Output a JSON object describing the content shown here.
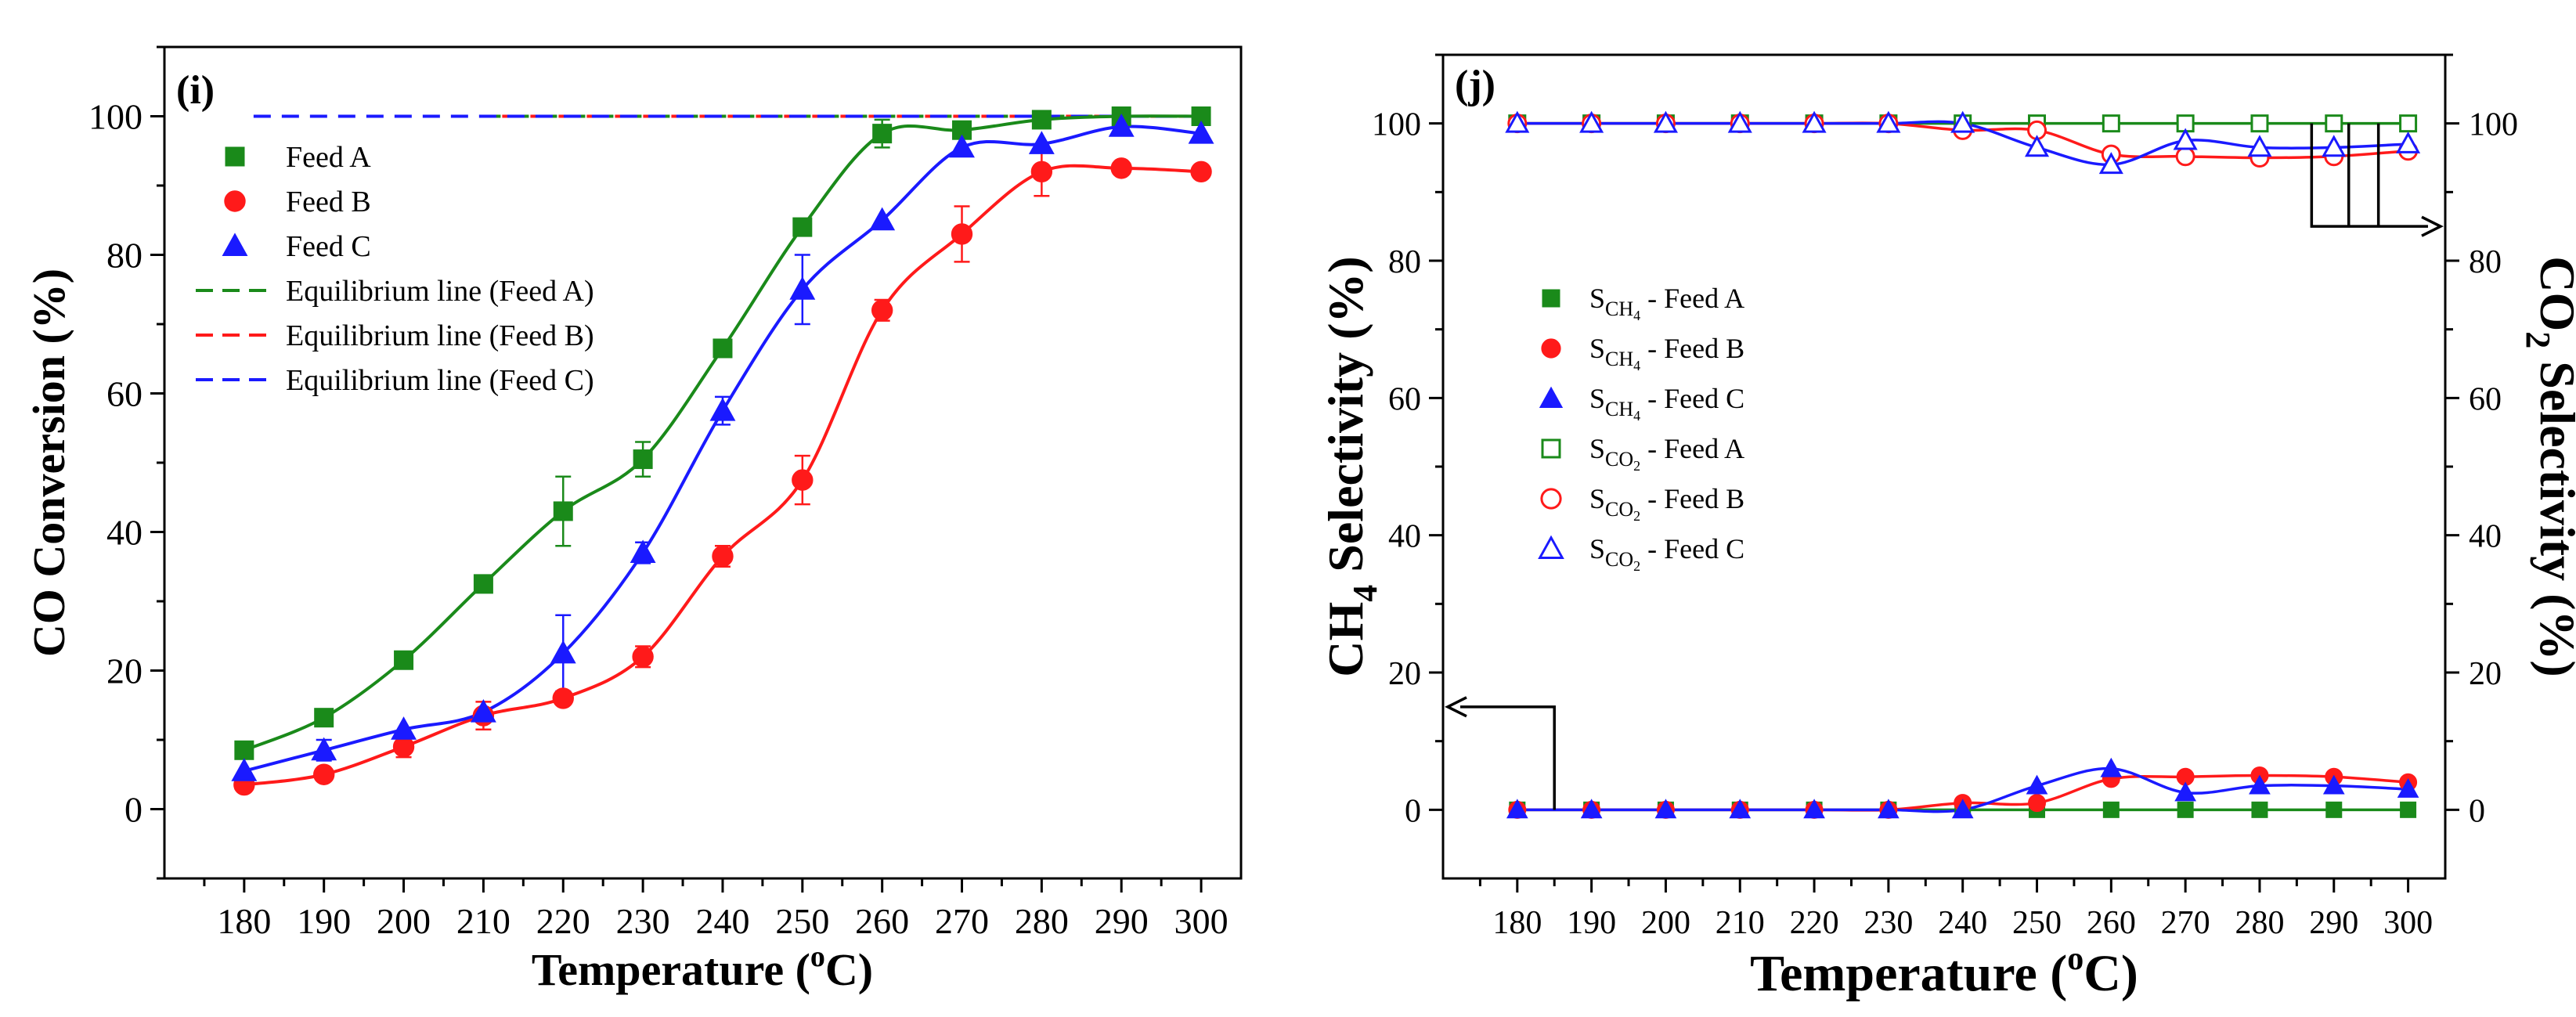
{
  "colors": {
    "feedA": "#1a8a1a",
    "feedB": "#ff1a1a",
    "feedC": "#1a1aff",
    "axis": "#000000"
  },
  "chart_data": [
    {
      "id": "i",
      "panel_label": "(i)",
      "type": "scatter",
      "xlabel": "Temperature (oC)",
      "xlabel_parts": {
        "main": "Temperature (",
        "sup": "o",
        "end": "C)"
      },
      "ylabel": "CO Conversion (%)",
      "xlim": [
        170,
        305
      ],
      "ylim": [
        -10,
        110
      ],
      "xticks": [
        "180",
        "190",
        "200",
        "210",
        "220",
        "230",
        "240",
        "250",
        "260",
        "270",
        "280",
        "290",
        "300"
      ],
      "yticks": [
        "0",
        "20",
        "40",
        "60",
        "80",
        "100"
      ],
      "x": [
        180,
        190,
        200,
        210,
        220,
        230,
        240,
        250,
        260,
        270,
        280,
        290,
        300
      ],
      "series": [
        {
          "name": "Feed A",
          "color": "#1a8a1a",
          "marker": "square",
          "fill": true,
          "values": [
            8.5,
            13.2,
            21.5,
            32.5,
            43,
            50.5,
            66.5,
            84,
            97.5,
            98,
            99.5,
            100,
            100
          ],
          "errors": [
            0,
            0,
            0,
            0,
            5,
            2.5,
            0,
            0,
            2,
            0,
            0,
            0,
            0
          ]
        },
        {
          "name": "Feed B",
          "color": "#ff1a1a",
          "marker": "circle",
          "fill": true,
          "values": [
            3.5,
            5,
            9,
            13.5,
            16,
            22,
            36.5,
            47.5,
            72,
            83,
            92,
            92.5,
            92
          ],
          "errors": [
            0,
            0,
            1.5,
            2,
            0,
            1.5,
            1.5,
            3.5,
            1.5,
            4,
            3.5,
            0,
            0
          ]
        },
        {
          "name": "Feed C",
          "color": "#1a1aff",
          "marker": "triangle",
          "fill": true,
          "values": [
            5.5,
            8.5,
            11.5,
            14,
            22.5,
            37,
            57.5,
            75,
            85,
            95.5,
            96,
            98.5,
            97.5
          ],
          "errors": [
            0,
            1.5,
            0,
            0,
            5.5,
            1.5,
            2,
            5,
            0,
            0,
            0,
            0,
            0
          ]
        }
      ],
      "equilibrium_lines": [
        {
          "name": "Equilibrium line (Feed A)",
          "color": "#1a8a1a",
          "value": 100,
          "x_range": [
            210,
            300
          ]
        },
        {
          "name": "Equilibrium line (Feed B)",
          "color": "#ff1a1a",
          "value": 100,
          "x_range": [
            210,
            300
          ]
        },
        {
          "name": "Equilibrium line (Feed C)",
          "color": "#1a1aff",
          "value": 100,
          "x_range": [
            180,
            300
          ]
        }
      ],
      "legend": [
        "Feed A",
        "Feed B",
        "Feed C",
        "Equilibrium line (Feed A)",
        "Equilibrium line (Feed B)",
        "Equilibrium line (Feed C)"
      ],
      "legend_position": "upper-left"
    },
    {
      "id": "j",
      "panel_label": "(j)",
      "type": "scatter",
      "xlabel": "Temperature (oC)",
      "xlabel_parts": {
        "main": "Temperature (",
        "sup": "o",
        "end": "C)"
      },
      "ylabel_left": "CH4 Selectivity (%)",
      "ylabel_left_parts": {
        "a": "CH",
        "sub": "4",
        "b": " Selectivity (%)"
      },
      "ylabel_right": "CO2 Selectivity (%)",
      "ylabel_right_parts": {
        "a": "CO",
        "sub": "2",
        "b": " Selectivity (%)"
      },
      "xlim": [
        170,
        305
      ],
      "ylim": [
        -10,
        110
      ],
      "xticks": [
        "180",
        "190",
        "200",
        "210",
        "220",
        "230",
        "240",
        "250",
        "260",
        "270",
        "280",
        "290",
        "300"
      ],
      "yticks": [
        "0",
        "20",
        "40",
        "60",
        "80",
        "100"
      ],
      "x": [
        180,
        190,
        200,
        210,
        220,
        230,
        240,
        250,
        260,
        270,
        280,
        290,
        300
      ],
      "series": [
        {
          "name": "SCH4 - Feed A",
          "label_main": "S",
          "label_sub": "CH",
          "label_subsub": "4",
          "label_end": " - Feed A",
          "color": "#1a8a1a",
          "marker": "square",
          "fill": true,
          "axis": "left",
          "values": [
            0,
            0,
            0,
            0,
            0,
            0,
            0,
            0,
            0,
            0,
            0,
            0,
            0
          ]
        },
        {
          "name": "SCH4 - Feed B",
          "label_main": "S",
          "label_sub": "CH",
          "label_subsub": "4",
          "label_end": " - Feed B",
          "color": "#ff1a1a",
          "marker": "circle",
          "fill": true,
          "axis": "left",
          "values": [
            0,
            0,
            0,
            0,
            0,
            0,
            1,
            1,
            4.5,
            4.8,
            5,
            4.8,
            4
          ]
        },
        {
          "name": "SCH4 - Feed C",
          "label_main": "S",
          "label_sub": "CH",
          "label_subsub": "4",
          "label_end": " - Feed C",
          "color": "#1a1aff",
          "marker": "triangle",
          "fill": true,
          "axis": "left",
          "values": [
            0,
            0,
            0,
            0,
            0,
            0,
            0,
            3.5,
            6,
            2.5,
            3.5,
            3.5,
            3
          ]
        },
        {
          "name": "SCO2 - Feed A",
          "label_main": "S",
          "label_sub": "CO",
          "label_subsub": "2",
          "label_end": " - Feed A",
          "color": "#1a8a1a",
          "marker": "square",
          "fill": false,
          "axis": "right",
          "values": [
            100,
            100,
            100,
            100,
            100,
            100,
            100,
            100,
            100,
            100,
            100,
            100,
            100
          ]
        },
        {
          "name": "SCO2 - Feed B",
          "label_main": "S",
          "label_sub": "CO",
          "label_subsub": "2",
          "label_end": " - Feed B",
          "color": "#ff1a1a",
          "marker": "circle",
          "fill": false,
          "axis": "right",
          "values": [
            100,
            100,
            100,
            100,
            100,
            100,
            99,
            99,
            95.5,
            95.2,
            95,
            95.2,
            96
          ]
        },
        {
          "name": "SCO2 - Feed C",
          "label_main": "S",
          "label_sub": "CO",
          "label_subsub": "2",
          "label_end": " - Feed C",
          "color": "#1a1aff",
          "marker": "triangle",
          "fill": false,
          "axis": "right",
          "values": [
            100,
            100,
            100,
            100,
            100,
            100,
            100,
            96.5,
            94,
            97.5,
            96.5,
            96.5,
            97
          ]
        }
      ],
      "legend_position": "center-left",
      "annotations": [
        "arrow pointing to left axis near 15%",
        "arrow pointing to right axis near 85%"
      ]
    }
  ]
}
